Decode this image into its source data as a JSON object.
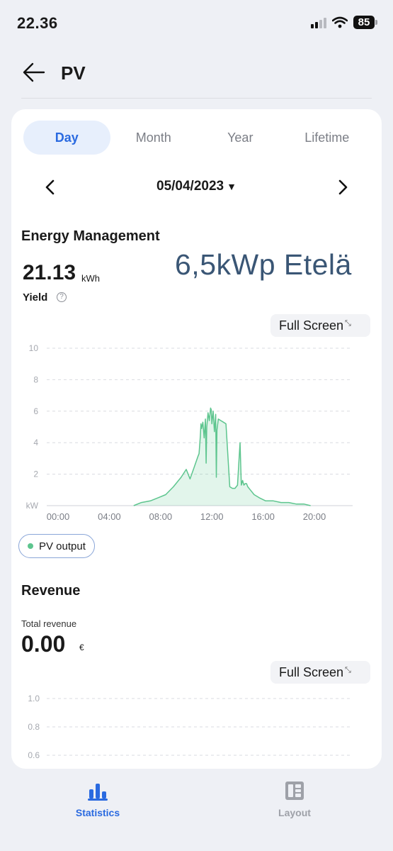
{
  "status_bar": {
    "time": "22.36",
    "battery": "85"
  },
  "header": {
    "title": "PV"
  },
  "tabs": [
    {
      "label": "Day",
      "active": true
    },
    {
      "label": "Month",
      "active": false
    },
    {
      "label": "Year",
      "active": false
    },
    {
      "label": "Lifetime",
      "active": false
    }
  ],
  "date_nav": {
    "date": "05/04/2023",
    "caret": "▼"
  },
  "energy": {
    "title": "Energy Management",
    "yield_value": "21.13",
    "yield_unit": "kWh",
    "yield_label": "Yield",
    "info": "?",
    "overlay": "6,5kWp Etelä",
    "fullscreen_label": "Full Screen",
    "legend_label": "PV output"
  },
  "chart_data": {
    "type": "area",
    "y_unit_label": "kW",
    "ylim": [
      0,
      10
    ],
    "y_ticks": [
      "10",
      "8",
      "6",
      "4",
      "2"
    ],
    "x_ticks": [
      "00:00",
      "04:00",
      "08:00",
      "12:00",
      "16:00",
      "20:00"
    ],
    "grid": true,
    "series": [
      {
        "name": "PV output",
        "color": "#5dc58e",
        "x": [
          5.9,
          6.5,
          7.2,
          7.8,
          8.4,
          9.0,
          9.6,
          10.0,
          10.3,
          10.6,
          10.9,
          11.0,
          11.1,
          11.15,
          11.2,
          11.3,
          11.4,
          11.5,
          11.55,
          11.6,
          11.7,
          11.8,
          11.9,
          11.95,
          12.0,
          12.1,
          12.2,
          12.3,
          12.35,
          12.4,
          12.5,
          12.7,
          12.9,
          13.1,
          13.4,
          13.6,
          13.8,
          14.0,
          14.2,
          14.3,
          14.4,
          14.5,
          14.6,
          14.7,
          14.8,
          15.0,
          15.3,
          15.7,
          16.2,
          16.8,
          17.4,
          18.0,
          18.6,
          19.2,
          19.7
        ],
        "y": [
          0.0,
          0.2,
          0.3,
          0.5,
          0.7,
          1.2,
          1.8,
          2.3,
          1.7,
          2.4,
          3.1,
          3.3,
          4.4,
          5.2,
          4.9,
          5.3,
          4.3,
          5.5,
          2.7,
          5.0,
          5.9,
          5.4,
          6.2,
          6.1,
          5.2,
          6.0,
          4.7,
          5.8,
          1.8,
          4.8,
          5.5,
          5.4,
          5.3,
          5.2,
          1.2,
          1.1,
          1.1,
          1.3,
          4.0,
          1.3,
          1.6,
          1.3,
          1.4,
          1.4,
          1.2,
          1.0,
          0.7,
          0.5,
          0.3,
          0.3,
          0.2,
          0.2,
          0.1,
          0.1,
          0.0
        ]
      }
    ]
  },
  "revenue": {
    "title": "Revenue",
    "total_label": "Total revenue",
    "value": "0.00",
    "unit": "€",
    "fullscreen_label": "Full Screen",
    "y_ticks": [
      "1.0",
      "0.8",
      "0.6"
    ]
  },
  "bottom_nav": {
    "statistics": "Statistics",
    "layout": "Layout"
  }
}
